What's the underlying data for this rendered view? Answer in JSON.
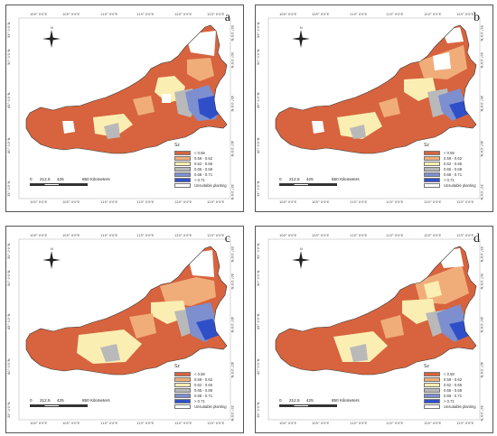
{
  "panels": [
    {
      "label": "a"
    },
    {
      "label": "b"
    },
    {
      "label": "c"
    },
    {
      "label": "d"
    }
  ],
  "graticule": {
    "lon": [
      "100° 0'0\"E",
      "105° 0'0\"E",
      "110° 0'0\"E",
      "115° 0'0\"E",
      "120° 0'0\"E",
      "125° 0'0\"E"
    ],
    "lat": [
      "35° 0'0\"N",
      "40° 0'0\"N",
      "45° 0'0\"N",
      "50° 0'0\"N",
      "55° 0'0\"N"
    ]
  },
  "north_arrow": {
    "letter": "N"
  },
  "scale_bar": {
    "ticks": [
      "0",
      "212.5",
      "425",
      "850 Kilometers"
    ]
  },
  "legend": {
    "title": "Sz",
    "items": [
      {
        "label": "< 0.59",
        "color": "#d7643e"
      },
      {
        "label": "0.59 - 0.62",
        "color": "#f0ad7a"
      },
      {
        "label": "0.62 - 0.65",
        "color": "#fbeeb2"
      },
      {
        "label": "0.65 - 0.68",
        "color": "#b9b9b9"
      },
      {
        "label": "0.68 - 0.71",
        "color": "#7d8fcf"
      },
      {
        "label": "> 0.71",
        "color": "#2f4fc9"
      },
      {
        "label": "Unsuitable planting",
        "color": "#ffffff"
      }
    ]
  }
}
